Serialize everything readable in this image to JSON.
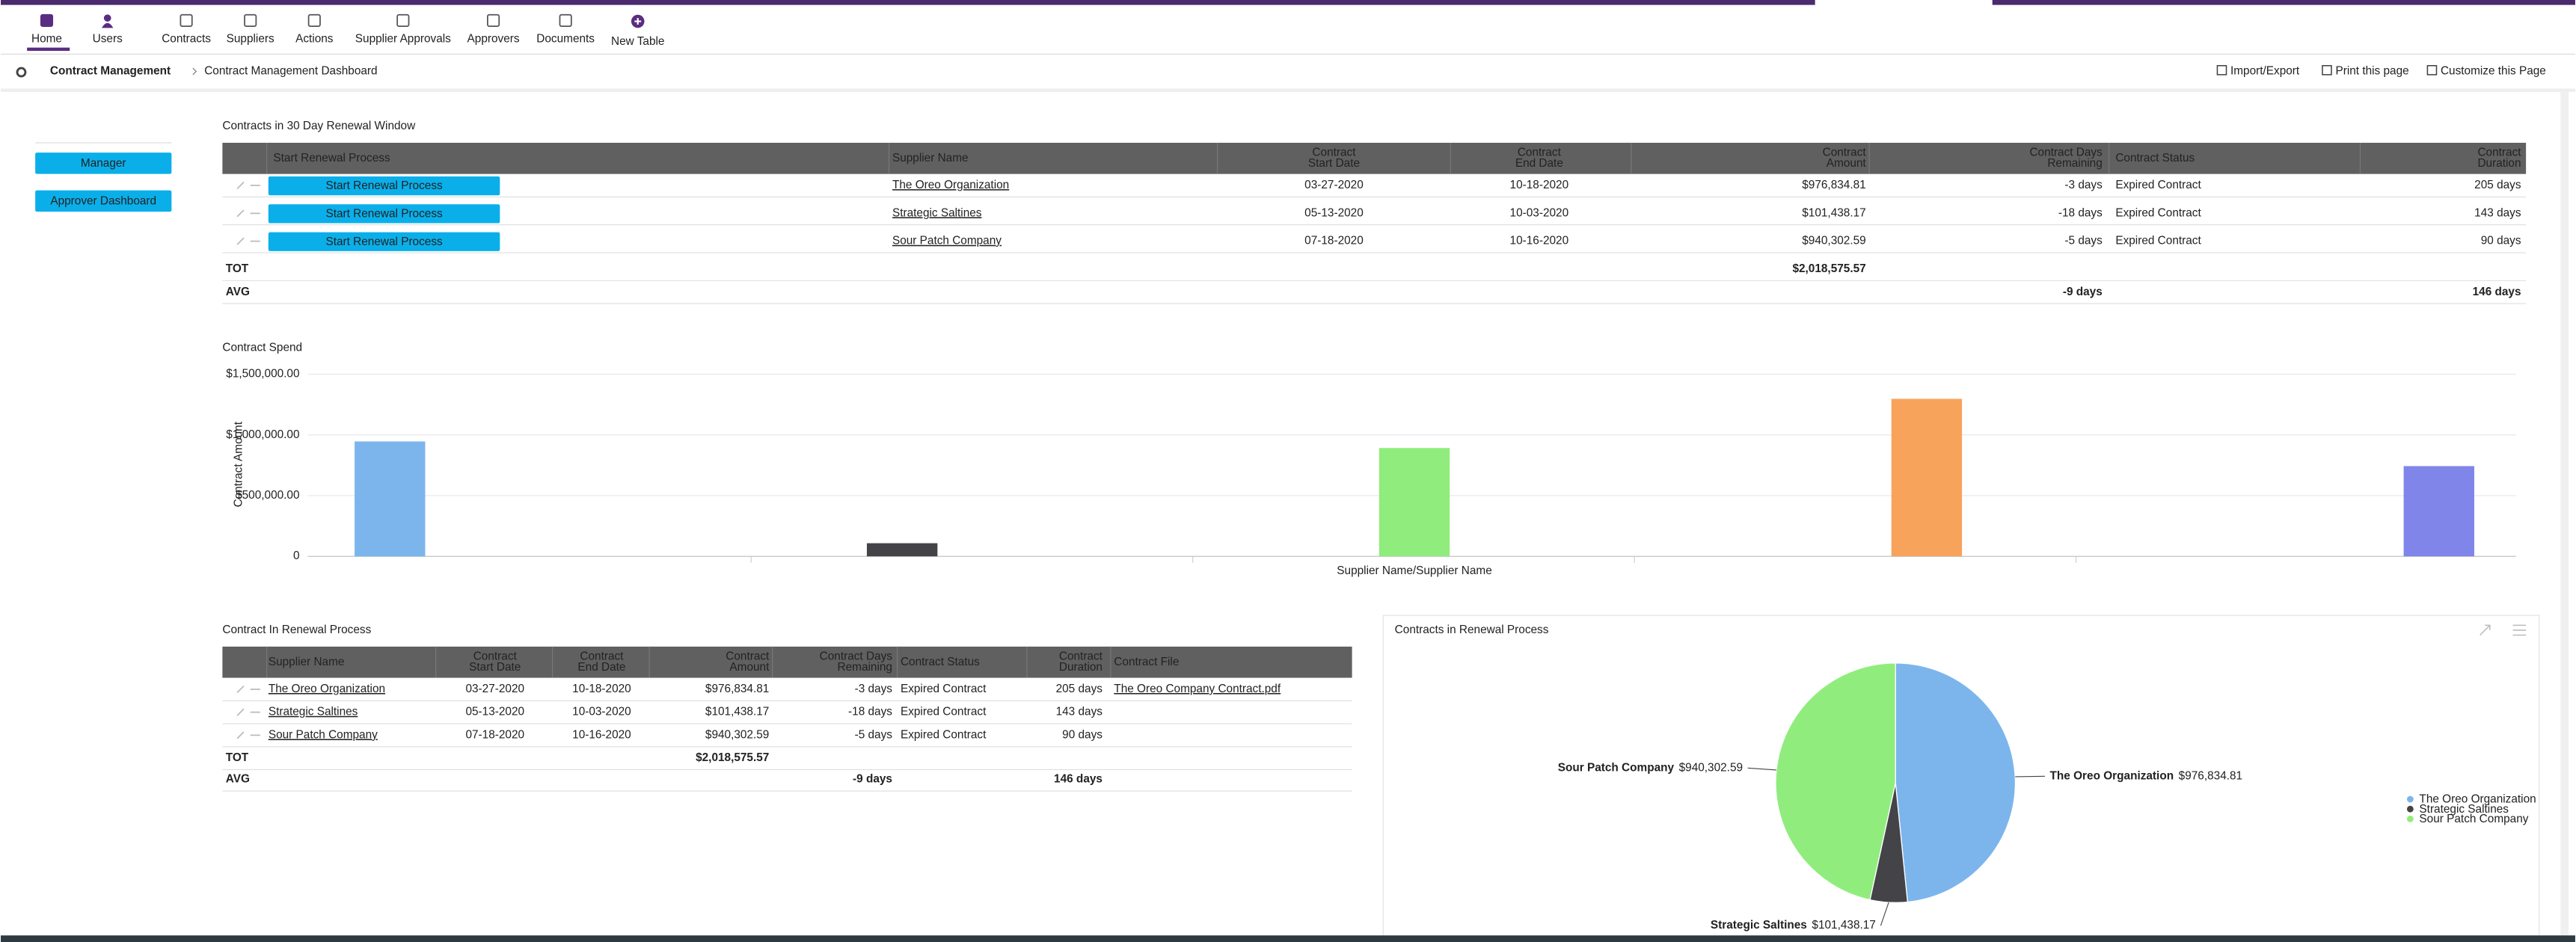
{
  "nav": {
    "items": [
      "Home",
      "Users",
      "Contracts",
      "Suppliers",
      "Actions",
      "Supplier Approvals",
      "Approvers",
      "Documents",
      "New Table"
    ]
  },
  "breadcrumb": [
    "Contract Management",
    "Contract Management Dashboard"
  ],
  "toolbar": [
    "Import/Export",
    "Print this page",
    "Customize this Page"
  ],
  "sidebar": [
    "Manager",
    "Approver Dashboard"
  ],
  "renewal_window": {
    "title": "Contracts in 30 Day Renewal Window",
    "columns": [
      [
        "Start Renewal Process"
      ],
      [
        "Supplier Name"
      ],
      [
        "Contract",
        "Start Date"
      ],
      [
        "Contract",
        "End Date"
      ],
      [
        "Contract",
        "Amount"
      ],
      [
        "Contract Days",
        "Remaining"
      ],
      [
        "Contract Status"
      ],
      [
        "Contract",
        "Duration"
      ]
    ],
    "rows": [
      [
        "Start Renewal Process",
        "The Oreo Organization",
        "03-27-2020",
        "10-18-2020",
        "$976,834.81",
        "-3 days",
        "Expired Contract",
        "205 days"
      ],
      [
        "Start Renewal Process",
        "Strategic Saltines",
        "05-13-2020",
        "10-03-2020",
        "$101,438.17",
        "-18 days",
        "Expired Contract",
        "143 days"
      ],
      [
        "Start Renewal Process",
        "Sour Patch Company",
        "07-18-2020",
        "10-16-2020",
        "$940,302.59",
        "-5 days",
        "Expired Contract",
        "90 days"
      ]
    ],
    "summary": [
      {
        "label": "TOT",
        "cells": [
          null,
          null,
          null,
          null,
          "$2,018,575.57",
          null,
          null,
          null
        ]
      },
      {
        "label": "AVG",
        "cells": [
          null,
          null,
          null,
          null,
          null,
          "-9 days",
          null,
          "146 days"
        ]
      }
    ]
  },
  "spend_chart": {
    "type": "bar",
    "title": "Contract Spend",
    "y_label": "Contract Amount",
    "x_label": "Supplier Name/Supplier Name",
    "categories": [
      null,
      null,
      null,
      null,
      null
    ],
    "values": [
      946000,
      108000,
      892000,
      1297000,
      743000
    ],
    "colors": [
      "#7cb5ec",
      "#434348",
      "#90ed7d",
      "#f7a35c",
      "#8085e9"
    ],
    "ylim": [
      0,
      1500000
    ],
    "yticks": [
      0,
      {
        "value": 500000,
        "label": "$500,000.00"
      },
      {
        "value": 1000000,
        "label": "$1,000,000.00"
      },
      {
        "value": 1500000,
        "label": "$1,500,000.00"
      }
    ],
    "grid": true
  },
  "renewal_process": {
    "title": "Contract In Renewal Process",
    "columns": [
      [
        "Supplier Name"
      ],
      [
        "Contract",
        "Start Date"
      ],
      [
        "Contract",
        "End Date"
      ],
      [
        "Contract",
        "Amount"
      ],
      [
        "Contract Days",
        "Remaining"
      ],
      [
        "Contract Status"
      ],
      [
        "Contract",
        "Duration"
      ],
      [
        "Contract File"
      ]
    ],
    "rows": [
      [
        "The Oreo Organization",
        "03-27-2020",
        "10-18-2020",
        "$976,834.81",
        "-3 days",
        "Expired Contract",
        "205 days",
        "The Oreo Company Contract.pdf"
      ],
      [
        "Strategic Saltines",
        "05-13-2020",
        "10-03-2020",
        "$101,438.17",
        "-18 days",
        "Expired Contract",
        "143 days",
        null
      ],
      [
        "Sour Patch Company",
        "07-18-2020",
        "10-16-2020",
        "$940,302.59",
        "-5 days",
        "Expired Contract",
        "90 days",
        null
      ]
    ],
    "summary": [
      {
        "label": "TOT",
        "cells": [
          null,
          null,
          null,
          "$2,018,575.57",
          null,
          null,
          null,
          null
        ]
      },
      {
        "label": "AVG",
        "cells": [
          null,
          null,
          null,
          null,
          "-9 days",
          null,
          "146 days",
          null
        ]
      }
    ]
  },
  "pie": {
    "type": "pie",
    "title": "Contracts in Renewal Process",
    "categories": [
      "The Oreo Organization",
      "Strategic Saltines",
      "Sour Patch Company"
    ],
    "values": [
      976834.81,
      101438.17,
      940302.59
    ],
    "value_labels": [
      "$976,834.81",
      "$101,438.17",
      "$940,302.59"
    ],
    "colors": [
      "#7cb5ec",
      "#434348",
      "#90ed7d"
    ]
  }
}
